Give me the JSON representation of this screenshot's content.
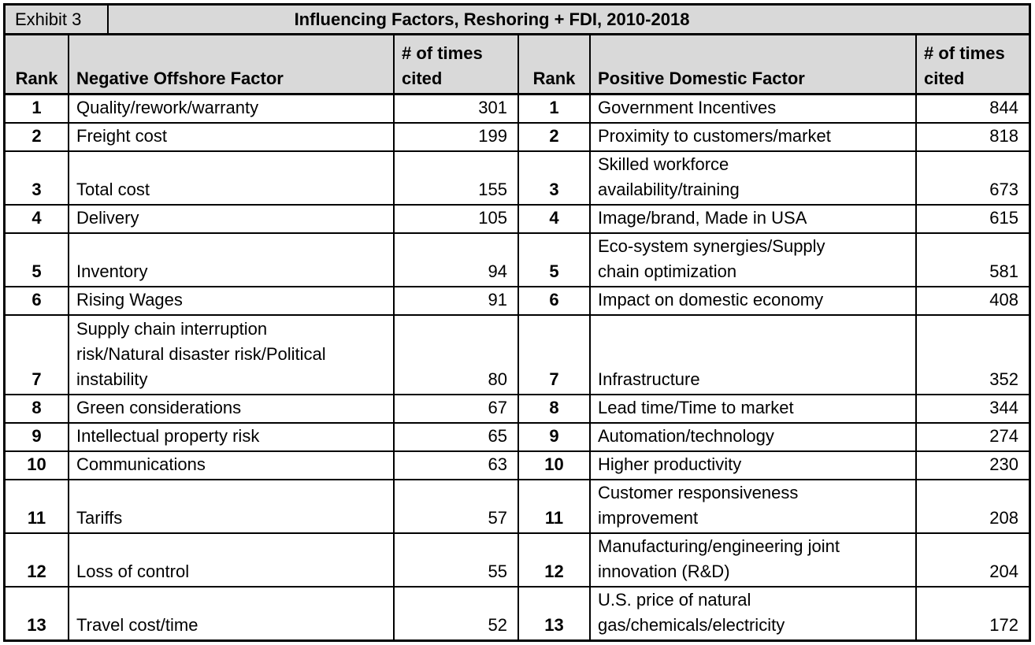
{
  "exhibit": {
    "label": "Exhibit 3",
    "title": "Influencing Factors, Reshoring + FDI, 2010-2018"
  },
  "table": {
    "headers": {
      "rank": "Rank",
      "negative_factor": "Negative Offshore Factor",
      "positive_factor": "Positive Domestic Factor",
      "times_cited": "# of times cited"
    },
    "rows": [
      {
        "rank": 1,
        "negative": "Quality/rework/warranty",
        "negative_cited": 301,
        "positive": "Government Incentives",
        "positive_cited": 844
      },
      {
        "rank": 2,
        "negative": "Freight cost",
        "negative_cited": 199,
        "positive": "Proximity to customers/market",
        "positive_cited": 818
      },
      {
        "rank": 3,
        "negative": "Total cost",
        "negative_cited": 155,
        "positive": "Skilled workforce\navailability/training",
        "positive_cited": 673
      },
      {
        "rank": 4,
        "negative": "Delivery",
        "negative_cited": 105,
        "positive": "Image/brand, Made in USA",
        "positive_cited": 615
      },
      {
        "rank": 5,
        "negative": "Inventory",
        "negative_cited": 94,
        "positive": "Eco-system synergies/Supply\nchain optimization",
        "positive_cited": 581
      },
      {
        "rank": 6,
        "negative": "Rising Wages",
        "negative_cited": 91,
        "positive": "Impact on domestic economy",
        "positive_cited": 408
      },
      {
        "rank": 7,
        "negative": "Supply chain interruption\nrisk/Natural disaster risk/Political\ninstability",
        "negative_cited": 80,
        "positive": "Infrastructure",
        "positive_cited": 352
      },
      {
        "rank": 8,
        "negative": "Green considerations",
        "negative_cited": 67,
        "positive": "Lead time/Time to market",
        "positive_cited": 344
      },
      {
        "rank": 9,
        "negative": "Intellectual property risk",
        "negative_cited": 65,
        "positive": "Automation/technology",
        "positive_cited": 274
      },
      {
        "rank": 10,
        "negative": "Communications",
        "negative_cited": 63,
        "positive": "Higher productivity",
        "positive_cited": 230
      },
      {
        "rank": 11,
        "negative": "Tariffs",
        "negative_cited": 57,
        "positive": "Customer responsiveness\nimprovement",
        "positive_cited": 208
      },
      {
        "rank": 12,
        "negative": "Loss of control",
        "negative_cited": 55,
        "positive": "Manufacturing/engineering joint\ninnovation (R&D)",
        "positive_cited": 204
      },
      {
        "rank": 13,
        "negative": "Travel cost/time",
        "negative_cited": 52,
        "positive": "U.S. price of natural\ngas/chemicals/electricity",
        "positive_cited": 172
      }
    ]
  },
  "colors": {
    "header_bg": "#d9d9d9",
    "border": "#000000",
    "text": "#000000"
  }
}
